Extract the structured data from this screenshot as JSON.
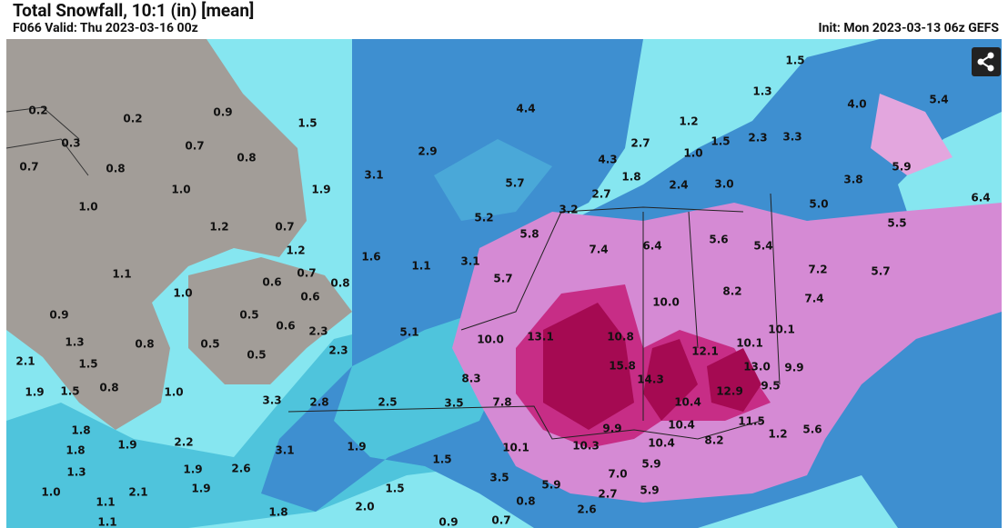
{
  "header": {
    "title": "Total Snowfall, 10:1 (in) [mean]",
    "valid": "F066 Valid: Thu 2023-03-16 00z",
    "init": "Init: Mon 2023-03-13 06z GEFS"
  },
  "map": {
    "labels": [
      "0.2",
      "0.2",
      "0.9",
      "1.5",
      "4.4",
      "1.5",
      "1.3",
      "4.0",
      "5.4",
      "1.2",
      "2.7",
      "1.5",
      "2.3",
      "3.3",
      "1.0",
      "4.3",
      "0.3",
      "0.7",
      "0.8",
      "2.9",
      "0.7",
      "0.8",
      "3.1",
      "5.7",
      "1.8",
      "2.4",
      "3.0",
      "5.9",
      "3.8",
      "1.0",
      "1.9",
      "2.7",
      "5.0",
      "6.4",
      "1.0",
      "5.2",
      "3.2",
      "1.2",
      "0.7",
      "5.8",
      "7.4",
      "6.4",
      "5.6",
      "5.4",
      "5.5",
      "1.2",
      "1.6",
      "1.1",
      "3.1",
      "7.2",
      "5.7",
      "1.1",
      "0.7",
      "0.6",
      "0.8",
      "5.7",
      "8.2",
      "7.4",
      "1.0",
      "0.6",
      "10.0",
      "0.9",
      "0.5",
      "0.6",
      "2.3",
      "10.1",
      "5.1",
      "10.0",
      "13.1",
      "10.8",
      "1.3",
      "0.8",
      "0.5",
      "2.3",
      "0.5",
      "12.1",
      "10.1",
      "2.1",
      "1.5",
      "8.3",
      "15.8",
      "14.3",
      "13.0",
      "9.9",
      "0.8",
      "1.9",
      "1.5",
      "1.0",
      "12.9",
      "9.5",
      "3.3",
      "2.8",
      "2.5",
      "3.5",
      "7.8",
      "10.4",
      "11.5",
      "1.8",
      "10.4",
      "9.9",
      "1.2",
      "5.6",
      "1.9",
      "2.2",
      "3.1",
      "1.9",
      "10.1",
      "10.3",
      "10.4",
      "8.2",
      "1.8",
      "1.5",
      "1.3",
      "1.9",
      "2.6",
      "5.9",
      "3.5",
      "7.0",
      "1.0",
      "2.1",
      "1.9",
      "1.5",
      "5.9",
      "2.7",
      "5.9",
      "0.8",
      "1.1",
      "2.0",
      "2.6",
      "1.8",
      "0.9",
      "0.7",
      "1.1"
    ]
  }
}
